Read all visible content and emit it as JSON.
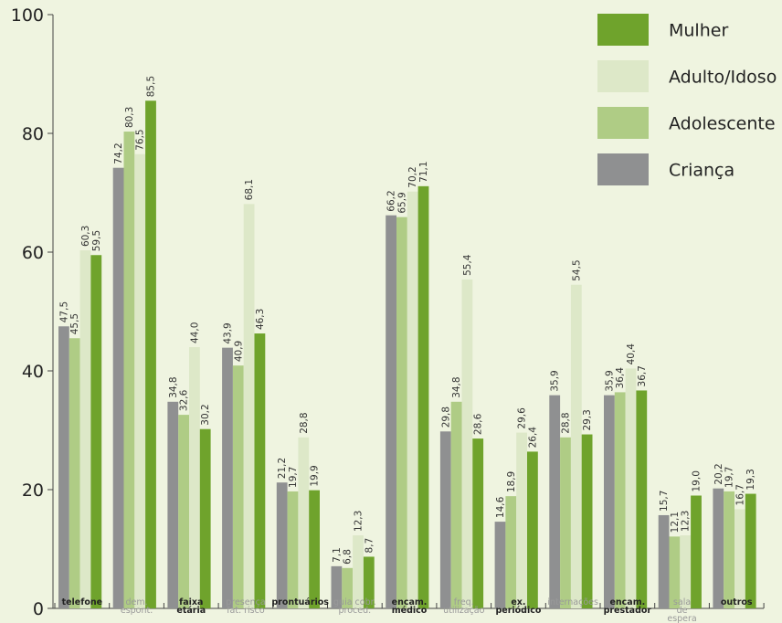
{
  "chart_data": {
    "type": "bar",
    "ylim": [
      0,
      100
    ],
    "yticks": [
      0,
      20,
      40,
      60,
      80,
      100
    ],
    "grid": false,
    "legend_position": "top-right",
    "categories": [
      [
        "telefone"
      ],
      [
        "dem.",
        "espont."
      ],
      [
        "faixa",
        "etária"
      ],
      [
        "presença",
        "fat. risco"
      ],
      [
        "prontuários"
      ],
      [
        "guia cobr.",
        "proced."
      ],
      [
        "encam.",
        "médico"
      ],
      [
        "freq.",
        "utilização"
      ],
      [
        "ex.",
        "periódico"
      ],
      [
        "internações"
      ],
      [
        "encam.",
        "prestador"
      ],
      [
        "sala",
        "de",
        "espera"
      ],
      [
        "outros"
      ]
    ],
    "category_emphasis": [
      "bold",
      "light",
      "bold",
      "light",
      "bold",
      "light",
      "bold",
      "light",
      "bold",
      "light",
      "bold",
      "light",
      "bold"
    ],
    "series": [
      {
        "name": "Criança",
        "color": "#8f9091",
        "values": [
          47.5,
          74.2,
          34.8,
          43.9,
          21.2,
          7.1,
          66.2,
          29.8,
          14.6,
          35.9,
          35.9,
          15.7,
          20.2
        ]
      },
      {
        "name": "Adolescente",
        "color": "#afcc85",
        "values": [
          45.5,
          80.3,
          32.6,
          40.9,
          19.7,
          6.8,
          65.9,
          34.8,
          18.9,
          28.8,
          36.4,
          12.1,
          19.7
        ]
      },
      {
        "name": "Adulto/Idoso",
        "color": "#dde8c8",
        "values": [
          60.3,
          76.5,
          44.0,
          68.1,
          28.8,
          12.3,
          70.2,
          55.4,
          29.6,
          54.5,
          40.4,
          12.3,
          16.7
        ]
      },
      {
        "name": "Mulher",
        "color": "#6fa32c",
        "values": [
          59.5,
          85.5,
          30.2,
          46.3,
          19.9,
          8.7,
          71.1,
          28.6,
          26.4,
          29.3,
          36.7,
          19.0,
          19.3
        ]
      }
    ],
    "legend_order": [
      "Mulher",
      "Adulto/Idoso",
      "Adolescente",
      "Criança"
    ]
  },
  "colors": {
    "background": "#eff4e0",
    "axis": "#444444",
    "label_bold": "#222222",
    "label_light": "#9a9a9a"
  }
}
